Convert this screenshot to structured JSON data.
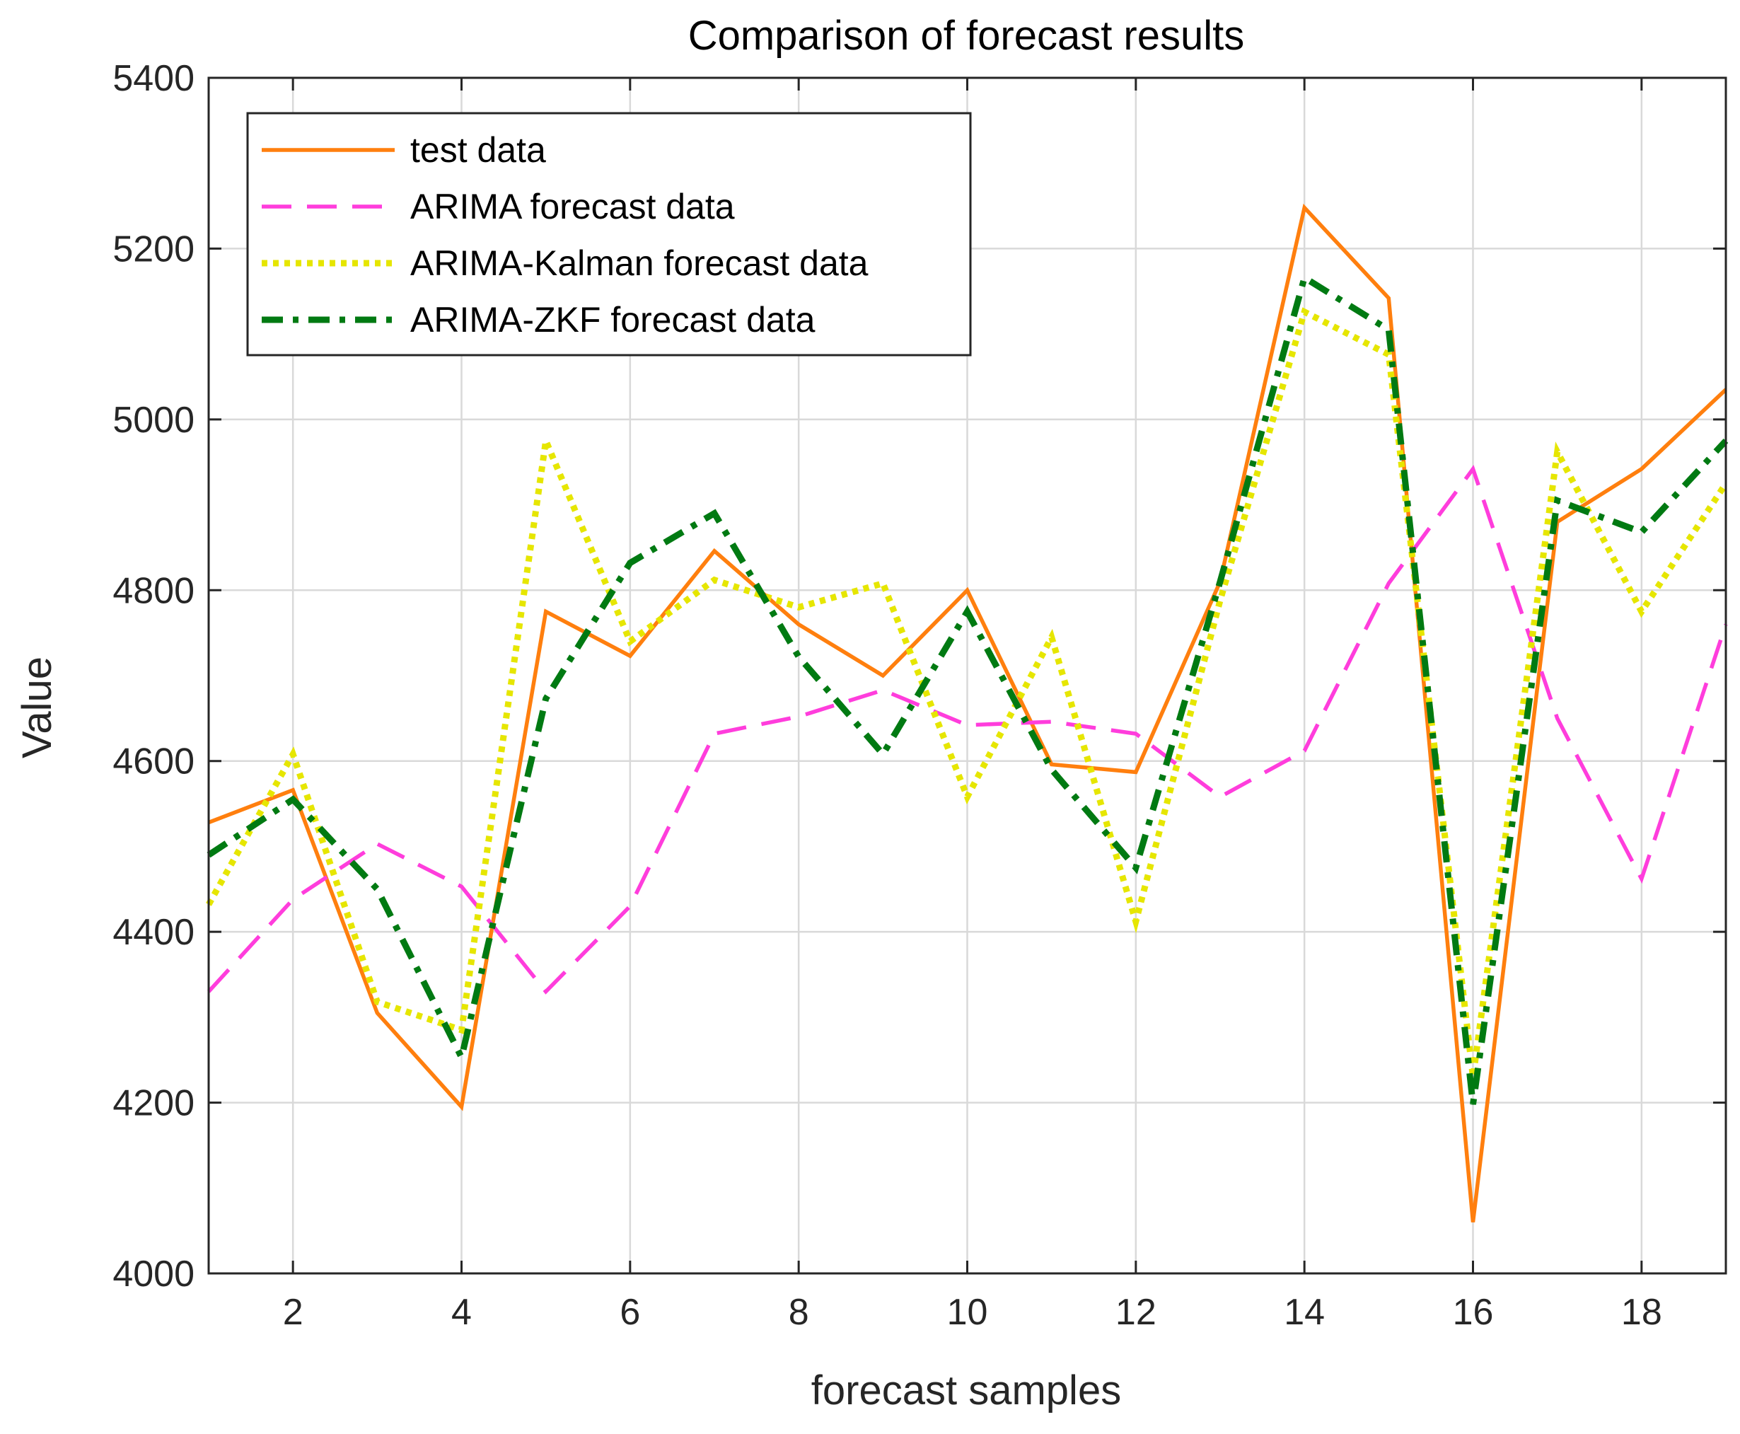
{
  "chart_data": {
    "type": "line",
    "title": "Comparison of forecast results",
    "xlabel": "forecast samples",
    "ylabel": "Value",
    "xlim": [
      1,
      19
    ],
    "ylim": [
      4000,
      5400
    ],
    "xticks": [
      "2",
      "4",
      "6",
      "8",
      "10",
      "12",
      "14",
      "16",
      "18"
    ],
    "yticks": [
      "4000",
      "4200",
      "4400",
      "4600",
      "4800",
      "5000",
      "5200",
      "5400"
    ],
    "grid": true,
    "legend_position": "top-left",
    "x": [
      1,
      2,
      3,
      4,
      5,
      6,
      7,
      8,
      9,
      10,
      11,
      12,
      13,
      14,
      15,
      16,
      17,
      18,
      19
    ],
    "series": [
      {
        "name": "test data",
        "color": "#ff7f0e",
        "style": "solid",
        "values": [
          4528,
          4566,
          4305,
          4195,
          4775,
          4723,
          4846,
          4760,
          4700,
          4800,
          4596,
          4587,
          4810,
          5248,
          5142,
          4060,
          4880,
          4942,
          5035
        ]
      },
      {
        "name": "ARIMA forecast data",
        "color": "#ff3ddc",
        "style": "dashed",
        "values": [
          4330,
          4438,
          4503,
          4453,
          4330,
          4430,
          4632,
          4652,
          4683,
          4642,
          4646,
          4632,
          4558,
          4612,
          4808,
          4942,
          4650,
          4462,
          4760
        ]
      },
      {
        "name": "ARIMA-Kalman forecast data",
        "color": "#e6e600",
        "style": "dotted",
        "values": [
          4432,
          4608,
          4318,
          4285,
          4975,
          4740,
          4812,
          4780,
          4808,
          4558,
          4745,
          4412,
          4788,
          5126,
          5076,
          4230,
          4962,
          4775,
          4925
        ]
      },
      {
        "name": "ARIMA-ZKF forecast data",
        "color": "#007a12",
        "style": "dashdot",
        "values": [
          4490,
          4555,
          4450,
          4253,
          4673,
          4832,
          4890,
          4722,
          4608,
          4775,
          4590,
          4475,
          4810,
          5166,
          5105,
          4198,
          4905,
          4868,
          4975
        ]
      }
    ]
  }
}
